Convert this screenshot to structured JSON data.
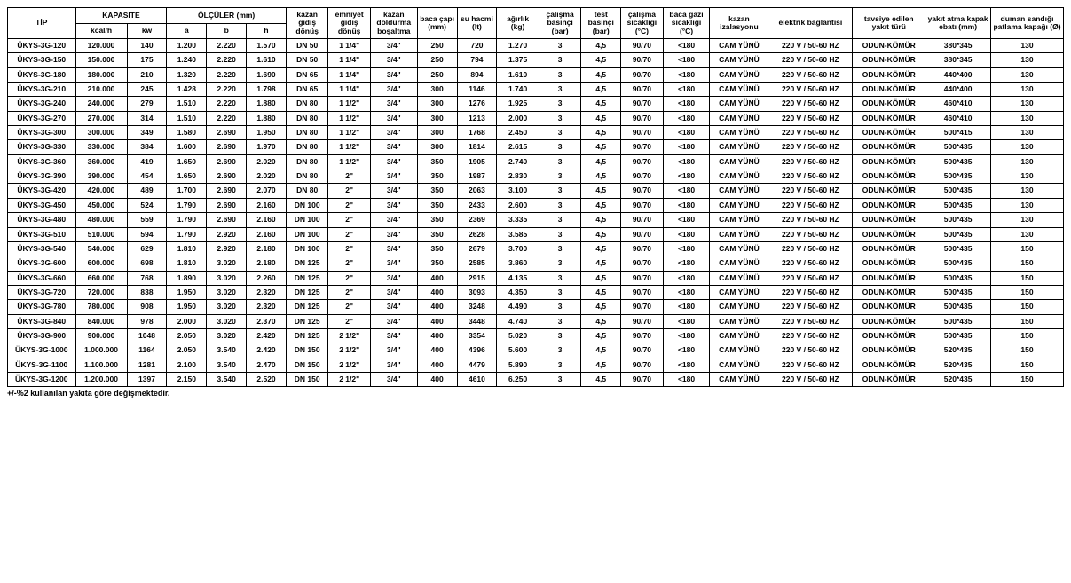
{
  "styling": {
    "font_family": "Arial, sans-serif",
    "base_font_size_pt": 7,
    "cell_font_weight": "bold",
    "border_color": "#000000",
    "background_color": "#ffffff",
    "text_color": "#000000"
  },
  "headers": {
    "tip": "TİP",
    "kapasite": "KAPASİTE",
    "kcal": "kcal/h",
    "kw": "kw",
    "olculer": "ÖLÇÜLER (mm)",
    "a": "a",
    "b": "b",
    "h": "h",
    "gidis": "kazan gidiş dönüş",
    "emniyet": "emniyet gidiş dönüş",
    "doldurma": "kazan doldurma boşaltma",
    "baca": "baca çapı (mm)",
    "hacim": "su hacmi (lt)",
    "agirlik": "ağırlık (kg)",
    "calisma_bas": "çalışma basınçı (bar)",
    "test_bas": "test basınçı (bar)",
    "calisma_sic": "çalışma sıcaklığı (°C)",
    "baca_gaz": "baca gazı sıcaklığı (°C)",
    "izolasyon": "kazan izalasyonu",
    "elektrik": "elektrik bağlantısı",
    "yakit": "tavsiye edilen yakıt türü",
    "kapak": "yakıt atma kapak ebatı (mm)",
    "patlama": "duman sandığı patlama kapağı (Ø)"
  },
  "constants": {
    "calisma_bas": "3",
    "test_bas": "4,5",
    "calisma_sic": "90/70",
    "baca_gaz": "<180",
    "izolasyon": "CAM YÜNÜ",
    "elektrik": "220 V / 50-60 HZ",
    "yakit": "ODUN-KÖMÜR",
    "emniyet_34": "3/4\""
  },
  "rows": [
    {
      "tip": "ÜKYS-3G-120",
      "kcal": "120.000",
      "kw": "140",
      "a": "1.200",
      "b": "2.220",
      "h": "1.570",
      "gd": "DN 50",
      "emn": "1 1/4\"",
      "baca": "250",
      "hac": "720",
      "ag": "1.270",
      "kap": "380*345",
      "pat": "130"
    },
    {
      "tip": "ÜKYS-3G-150",
      "kcal": "150.000",
      "kw": "175",
      "a": "1.240",
      "b": "2.220",
      "h": "1.610",
      "gd": "DN 50",
      "emn": "1 1/4\"",
      "baca": "250",
      "hac": "794",
      "ag": "1.375",
      "kap": "380*345",
      "pat": "130"
    },
    {
      "tip": "ÜKYS-3G-180",
      "kcal": "180.000",
      "kw": "210",
      "a": "1.320",
      "b": "2.220",
      "h": "1.690",
      "gd": "DN 65",
      "emn": "1 1/4\"",
      "baca": "250",
      "hac": "894",
      "ag": "1.610",
      "kap": "440*400",
      "pat": "130"
    },
    {
      "tip": "ÜKYS-3G-210",
      "kcal": "210.000",
      "kw": "245",
      "a": "1.428",
      "b": "2.220",
      "h": "1.798",
      "gd": "DN 65",
      "emn": "1 1/4\"",
      "baca": "300",
      "hac": "1146",
      "ag": "1.740",
      "kap": "440*400",
      "pat": "130"
    },
    {
      "tip": "ÜKYS-3G-240",
      "kcal": "240.000",
      "kw": "279",
      "a": "1.510",
      "b": "2.220",
      "h": "1.880",
      "gd": "DN 80",
      "emn": "1 1/2\"",
      "baca": "300",
      "hac": "1276",
      "ag": "1.925",
      "kap": "460*410",
      "pat": "130"
    },
    {
      "tip": "ÜKYS-3G-270",
      "kcal": "270.000",
      "kw": "314",
      "a": "1.510",
      "b": "2.220",
      "h": "1.880",
      "gd": "DN 80",
      "emn": "1 1/2\"",
      "baca": "300",
      "hac": "1213",
      "ag": "2.000",
      "kap": "460*410",
      "pat": "130"
    },
    {
      "tip": "ÜKYS-3G-300",
      "kcal": "300.000",
      "kw": "349",
      "a": "1.580",
      "b": "2.690",
      "h": "1.950",
      "gd": "DN 80",
      "emn": "1 1/2\"",
      "baca": "300",
      "hac": "1768",
      "ag": "2.450",
      "kap": "500*415",
      "pat": "130"
    },
    {
      "tip": "ÜKYS-3G-330",
      "kcal": "330.000",
      "kw": "384",
      "a": "1.600",
      "b": "2.690",
      "h": "1.970",
      "gd": "DN 80",
      "emn": "1 1/2\"",
      "baca": "300",
      "hac": "1814",
      "ag": "2.615",
      "kap": "500*435",
      "pat": "130"
    },
    {
      "tip": "ÜKYS-3G-360",
      "kcal": "360.000",
      "kw": "419",
      "a": "1.650",
      "b": "2.690",
      "h": "2.020",
      "gd": "DN 80",
      "emn": "1 1/2\"",
      "baca": "350",
      "hac": "1905",
      "ag": "2.740",
      "kap": "500*435",
      "pat": "130"
    },
    {
      "tip": "ÜKYS-3G-390",
      "kcal": "390.000",
      "kw": "454",
      "a": "1.650",
      "b": "2.690",
      "h": "2.020",
      "gd": "DN 80",
      "emn": "2\"",
      "baca": "350",
      "hac": "1987",
      "ag": "2.830",
      "kap": "500*435",
      "pat": "130"
    },
    {
      "tip": "ÜKYS-3G-420",
      "kcal": "420.000",
      "kw": "489",
      "a": "1.700",
      "b": "2.690",
      "h": "2.070",
      "gd": "DN 80",
      "emn": "2\"",
      "baca": "350",
      "hac": "2063",
      "ag": "3.100",
      "kap": "500*435",
      "pat": "130"
    },
    {
      "tip": "ÜKYS-3G-450",
      "kcal": "450.000",
      "kw": "524",
      "a": "1.790",
      "b": "2.690",
      "h": "2.160",
      "gd": "DN 100",
      "emn": "2\"",
      "baca": "350",
      "hac": "2433",
      "ag": "2.600",
      "kap": "500*435",
      "pat": "130"
    },
    {
      "tip": "ÜKYS-3G-480",
      "kcal": "480.000",
      "kw": "559",
      "a": "1.790",
      "b": "2.690",
      "h": "2.160",
      "gd": "DN 100",
      "emn": "2\"",
      "baca": "350",
      "hac": "2369",
      "ag": "3.335",
      "kap": "500*435",
      "pat": "130"
    },
    {
      "tip": "ÜKYS-3G-510",
      "kcal": "510.000",
      "kw": "594",
      "a": "1.790",
      "b": "2.920",
      "h": "2.160",
      "gd": "DN 100",
      "emn": "2\"",
      "baca": "350",
      "hac": "2628",
      "ag": "3.585",
      "kap": "500*435",
      "pat": "130"
    },
    {
      "tip": "ÜKYS-3G-540",
      "kcal": "540.000",
      "kw": "629",
      "a": "1.810",
      "b": "2.920",
      "h": "2.180",
      "gd": "DN 100",
      "emn": "2\"",
      "baca": "350",
      "hac": "2679",
      "ag": "3.700",
      "kap": "500*435",
      "pat": "150"
    },
    {
      "tip": "ÜKYS-3G-600",
      "kcal": "600.000",
      "kw": "698",
      "a": "1.810",
      "b": "3.020",
      "h": "2.180",
      "gd": "DN 125",
      "emn": "2\"",
      "baca": "350",
      "hac": "2585",
      "ag": "3.860",
      "kap": "500*435",
      "pat": "150"
    },
    {
      "tip": "ÜKYS-3G-660",
      "kcal": "660.000",
      "kw": "768",
      "a": "1.890",
      "b": "3.020",
      "h": "2.260",
      "gd": "DN 125",
      "emn": "2\"",
      "baca": "400",
      "hac": "2915",
      "ag": "4.135",
      "kap": "500*435",
      "pat": "150"
    },
    {
      "tip": "ÜKYS-3G-720",
      "kcal": "720.000",
      "kw": "838",
      "a": "1.950",
      "b": "3.020",
      "h": "2.320",
      "gd": "DN 125",
      "emn": "2\"",
      "baca": "400",
      "hac": "3093",
      "ag": "4.350",
      "kap": "500*435",
      "pat": "150"
    },
    {
      "tip": "ÜKYS-3G-780",
      "kcal": "780.000",
      "kw": "908",
      "a": "1.950",
      "b": "3.020",
      "h": "2.320",
      "gd": "DN 125",
      "emn": "2\"",
      "baca": "400",
      "hac": "3248",
      "ag": "4.490",
      "kap": "500*435",
      "pat": "150"
    },
    {
      "tip": "ÜKYS-3G-840",
      "kcal": "840.000",
      "kw": "978",
      "a": "2.000",
      "b": "3.020",
      "h": "2.370",
      "gd": "DN 125",
      "emn": "2\"",
      "baca": "400",
      "hac": "3448",
      "ag": "4.740",
      "kap": "500*435",
      "pat": "150"
    },
    {
      "tip": "ÜKYS-3G-900",
      "kcal": "900.000",
      "kw": "1048",
      "a": "2.050",
      "b": "3.020",
      "h": "2.420",
      "gd": "DN 125",
      "emn": "2 1/2\"",
      "baca": "400",
      "hac": "3354",
      "ag": "5.020",
      "kap": "500*435",
      "pat": "150"
    },
    {
      "tip": "ÜKYS-3G-1000",
      "kcal": "1.000.000",
      "kw": "1164",
      "a": "2.050",
      "b": "3.540",
      "h": "2.420",
      "gd": "DN 150",
      "emn": "2 1/2\"",
      "baca": "400",
      "hac": "4396",
      "ag": "5.600",
      "kap": "520*435",
      "pat": "150"
    },
    {
      "tip": "ÜKYS-3G-1100",
      "kcal": "1.100.000",
      "kw": "1281",
      "a": "2.100",
      "b": "3.540",
      "h": "2.470",
      "gd": "DN 150",
      "emn": "2 1/2\"",
      "baca": "400",
      "hac": "4479",
      "ag": "5.890",
      "kap": "520*435",
      "pat": "150"
    },
    {
      "tip": "ÜKYS-3G-1200",
      "kcal": "1.200.000",
      "kw": "1397",
      "a": "2.150",
      "b": "3.540",
      "h": "2.520",
      "gd": "DN 150",
      "emn": "2 1/2\"",
      "baca": "400",
      "hac": "4610",
      "ag": "6.250",
      "kap": "520*435",
      "pat": "150"
    }
  ],
  "note": "+/-%2 kullanılan yakıta göre değişmektedir."
}
